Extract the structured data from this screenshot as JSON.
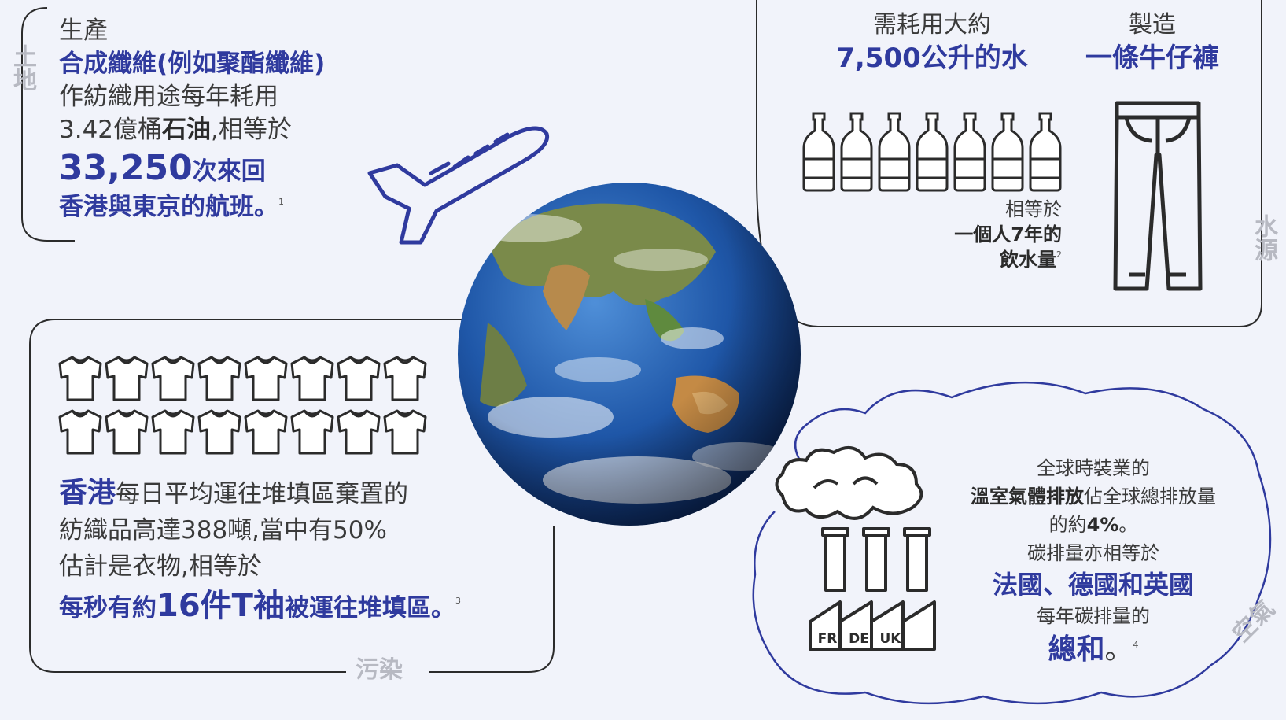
{
  "colors": {
    "background": "#f1f3fa",
    "accent_blue": "#2f3a9e",
    "line": "#2b2b2b",
    "muted_label": "#b7b9c2"
  },
  "land": {
    "side_label": "土地",
    "line1": "生產",
    "line2": "合成纖維(例如聚酯纖維)",
    "line3": "作紡織用途每年耗用",
    "line4_pre": "3.42億桶",
    "line4_bold": "石油",
    "line4_post": ",相等於",
    "big_number": "33,250",
    "big_suffix": "次來回",
    "line6": "香港與東京的航班。",
    "footnote": "1",
    "icon": "airplane-icon"
  },
  "water": {
    "side_label": "水源",
    "col1_line1": "需耗用大約",
    "col1_line2": "7,500公升的水",
    "col2_line1": "製造",
    "col2_line2": "一條牛仔褲",
    "eq_line1": "相等於",
    "eq_line2": "一個人7年的",
    "eq_line3": "飲水量",
    "footnote": "2",
    "bottle_count": 7,
    "icons": [
      "water-bottle-icon",
      "jeans-icon"
    ]
  },
  "pollution": {
    "side_label": "污染",
    "line1_bold": "香港",
    "line1_rest": "每日平均運往堆填區棄置的",
    "line2": "紡織品高達388噸,當中有50%",
    "line3": "估計是衣物,相等於",
    "line4_pre": "每秒有約",
    "line4_big": "16件T袖",
    "line4_post": "被運往堆填區。",
    "footnote": "3",
    "tshirt_count": 16,
    "icon": "tshirt-icon"
  },
  "air": {
    "side_label": "空氣",
    "line1": "全球時裝業的",
    "line2_bold": "溫室氣體排放",
    "line2_rest": "佔全球總排放量",
    "line3_pre": "的約",
    "line3_bold": "4%",
    "line3_post": "。",
    "line4": "碳排量亦相等於",
    "line5": "法國、德國和英國",
    "line6": "每年碳排量的",
    "line7": "總和",
    "line7_post": "。",
    "footnote": "4",
    "factory_labels": [
      "FR",
      "DE",
      "UK"
    ],
    "icons": [
      "factory-icon",
      "smoke-cloud-icon"
    ]
  },
  "center": {
    "icon": "earth-globe-icon"
  }
}
